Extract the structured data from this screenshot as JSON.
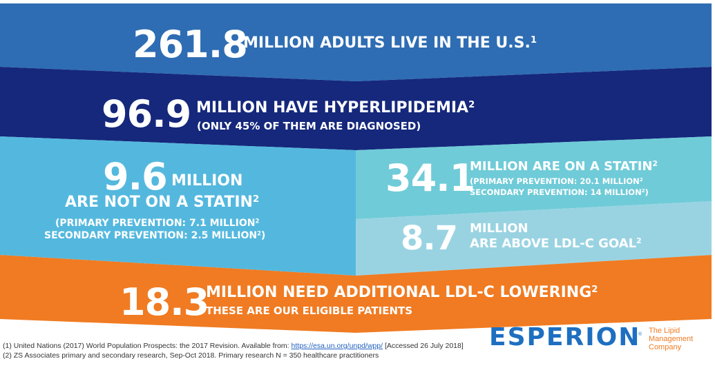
{
  "colors": {
    "band1": "#2e6db3",
    "band2": "#15287c",
    "band3_left": "#54b8de",
    "band3_right_top": "#6fcbd8",
    "band3_right_bottom": "#99d3e2",
    "band4": "#f07b22",
    "logo_blue": "#1e6fc0",
    "logo_orange": "#f07b22"
  },
  "tiers": {
    "adults": {
      "value": "261.8",
      "label": "MILLION ADULTS LIVE IN THE U.S.",
      "ref": "1"
    },
    "hyperlipidemia": {
      "value": "96.9",
      "label": "MILLION HAVE HYPERLIPIDEMIA",
      "ref": "2",
      "note": "(ONLY 45% OF THEM ARE DIAGNOSED)"
    },
    "not_on_statin": {
      "value": "9.6",
      "unit": "MILLION",
      "label": "ARE NOT ON A STATIN",
      "ref": "2",
      "primary": "(PRIMARY PREVENTION: 7.1 MILLION",
      "primary_ref": "2",
      "secondary": "SECONDARY PREVENTION: 2.5 MILLION",
      "secondary_ref": "2",
      "close": ")"
    },
    "on_statin": {
      "value": "34.1",
      "label": "MILLION ARE ON A STATIN",
      "ref": "2",
      "primary": "(PRIMARY PREVENTION: 20.1 MILLION",
      "primary_ref": "2",
      "secondary": "SECONDARY PREVENTION: 14 MILLION",
      "secondary_ref": "2",
      "close": ")"
    },
    "above_goal": {
      "value": "8.7",
      "unit": "MILLION",
      "label": "ARE ABOVE LDL-C GOAL",
      "ref": "2"
    },
    "additional": {
      "value": "18.3",
      "label": "MILLION NEED ADDITIONAL LDL-C LOWERING",
      "ref": "2",
      "note": "THESE ARE OUR ELIGIBLE PATIENTS"
    }
  },
  "footnotes": {
    "one_a": "(1) United Nations (2017) World Population Prospects: the 2017 Revision. Available from:",
    "one_link": "https://esa.un.org/unpd/wpp/",
    "one_b": "[Accessed 26 July 2018]",
    "two": "(2) ZS Associates primary and secondary research, Sep-Oct 2018. Primary research N = 350 healthcare practitioners"
  },
  "logo": {
    "name": "ESPERION",
    "reg": "®",
    "tagline_1": "The Lipid",
    "tagline_2": "Management",
    "tagline_3": "Company"
  }
}
